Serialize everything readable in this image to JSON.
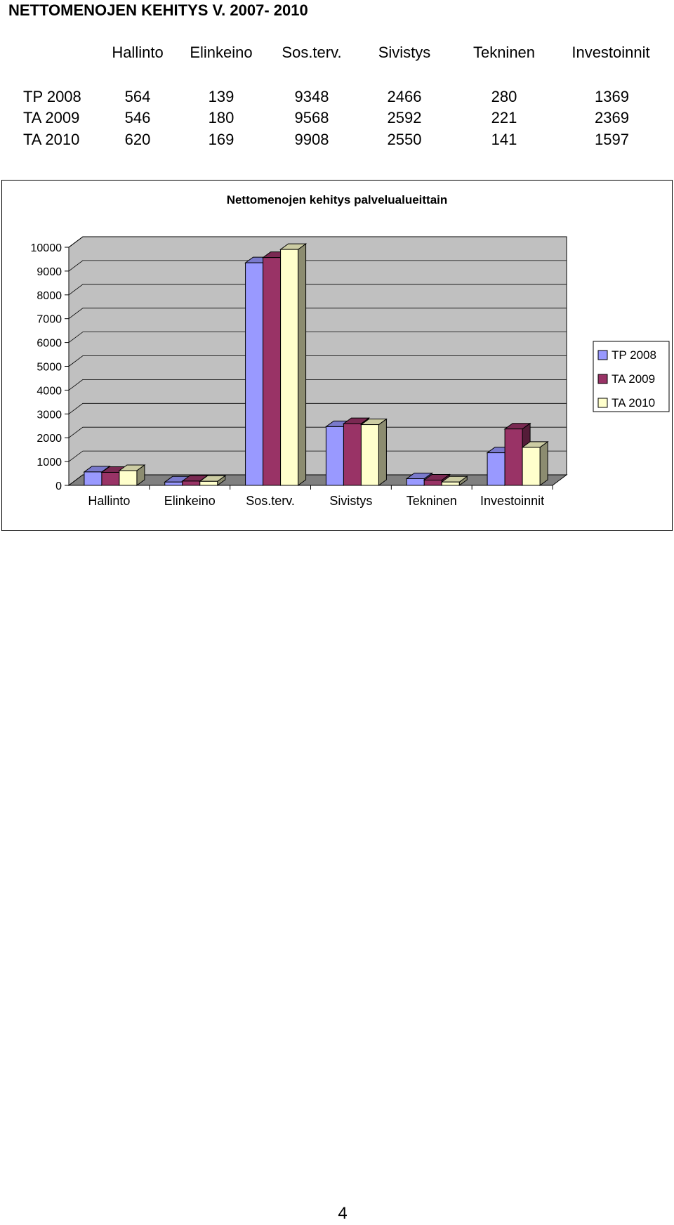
{
  "document": {
    "title": "NETTOMENOJEN KEHITYS V. 2007-  2010",
    "page_number": "4"
  },
  "table": {
    "columns": [
      "Hallinto",
      "Elinkeino",
      "Sos.terv.",
      "Sivistys",
      "Tekninen",
      "Investoinnit"
    ],
    "rows": [
      {
        "label": "TP 2008",
        "values": [
          "564",
          "139",
          "9348",
          "2466",
          "280",
          "1369"
        ]
      },
      {
        "label": "TA 2009",
        "values": [
          "546",
          "180",
          "9568",
          "2592",
          "221",
          "2369"
        ]
      },
      {
        "label": "TA 2010",
        "values": [
          "620",
          "169",
          "9908",
          "2550",
          "141",
          "1597"
        ]
      }
    ]
  },
  "chart_data": {
    "type": "bar",
    "style": "3d-clustered-column",
    "title": "Nettomenojen kehitys palvelualueittain",
    "categories": [
      "Hallinto",
      "Elinkeino",
      "Sos.terv.",
      "Sivistys",
      "Tekninen",
      "Investoinnit"
    ],
    "series": [
      {
        "name": "TP 2008",
        "values": [
          564,
          139,
          9348,
          2466,
          280,
          1369
        ],
        "color": "#9999ff"
      },
      {
        "name": "TA 2009",
        "values": [
          546,
          180,
          9568,
          2592,
          221,
          2369
        ],
        "color": "#993366"
      },
      {
        "name": "TA 2010",
        "values": [
          620,
          169,
          9908,
          2550,
          141,
          1597
        ],
        "color": "#ffffcc"
      }
    ],
    "ylim": [
      0,
      10000
    ],
    "yticks": [
      "0",
      "1000",
      "2000",
      "3000",
      "4000",
      "5000",
      "6000",
      "7000",
      "8000",
      "9000",
      "10000"
    ],
    "grid": true,
    "legend": "right",
    "wall_color": "#c0c0c0",
    "floor_color": "#808080",
    "xlabel": "",
    "ylabel": ""
  }
}
